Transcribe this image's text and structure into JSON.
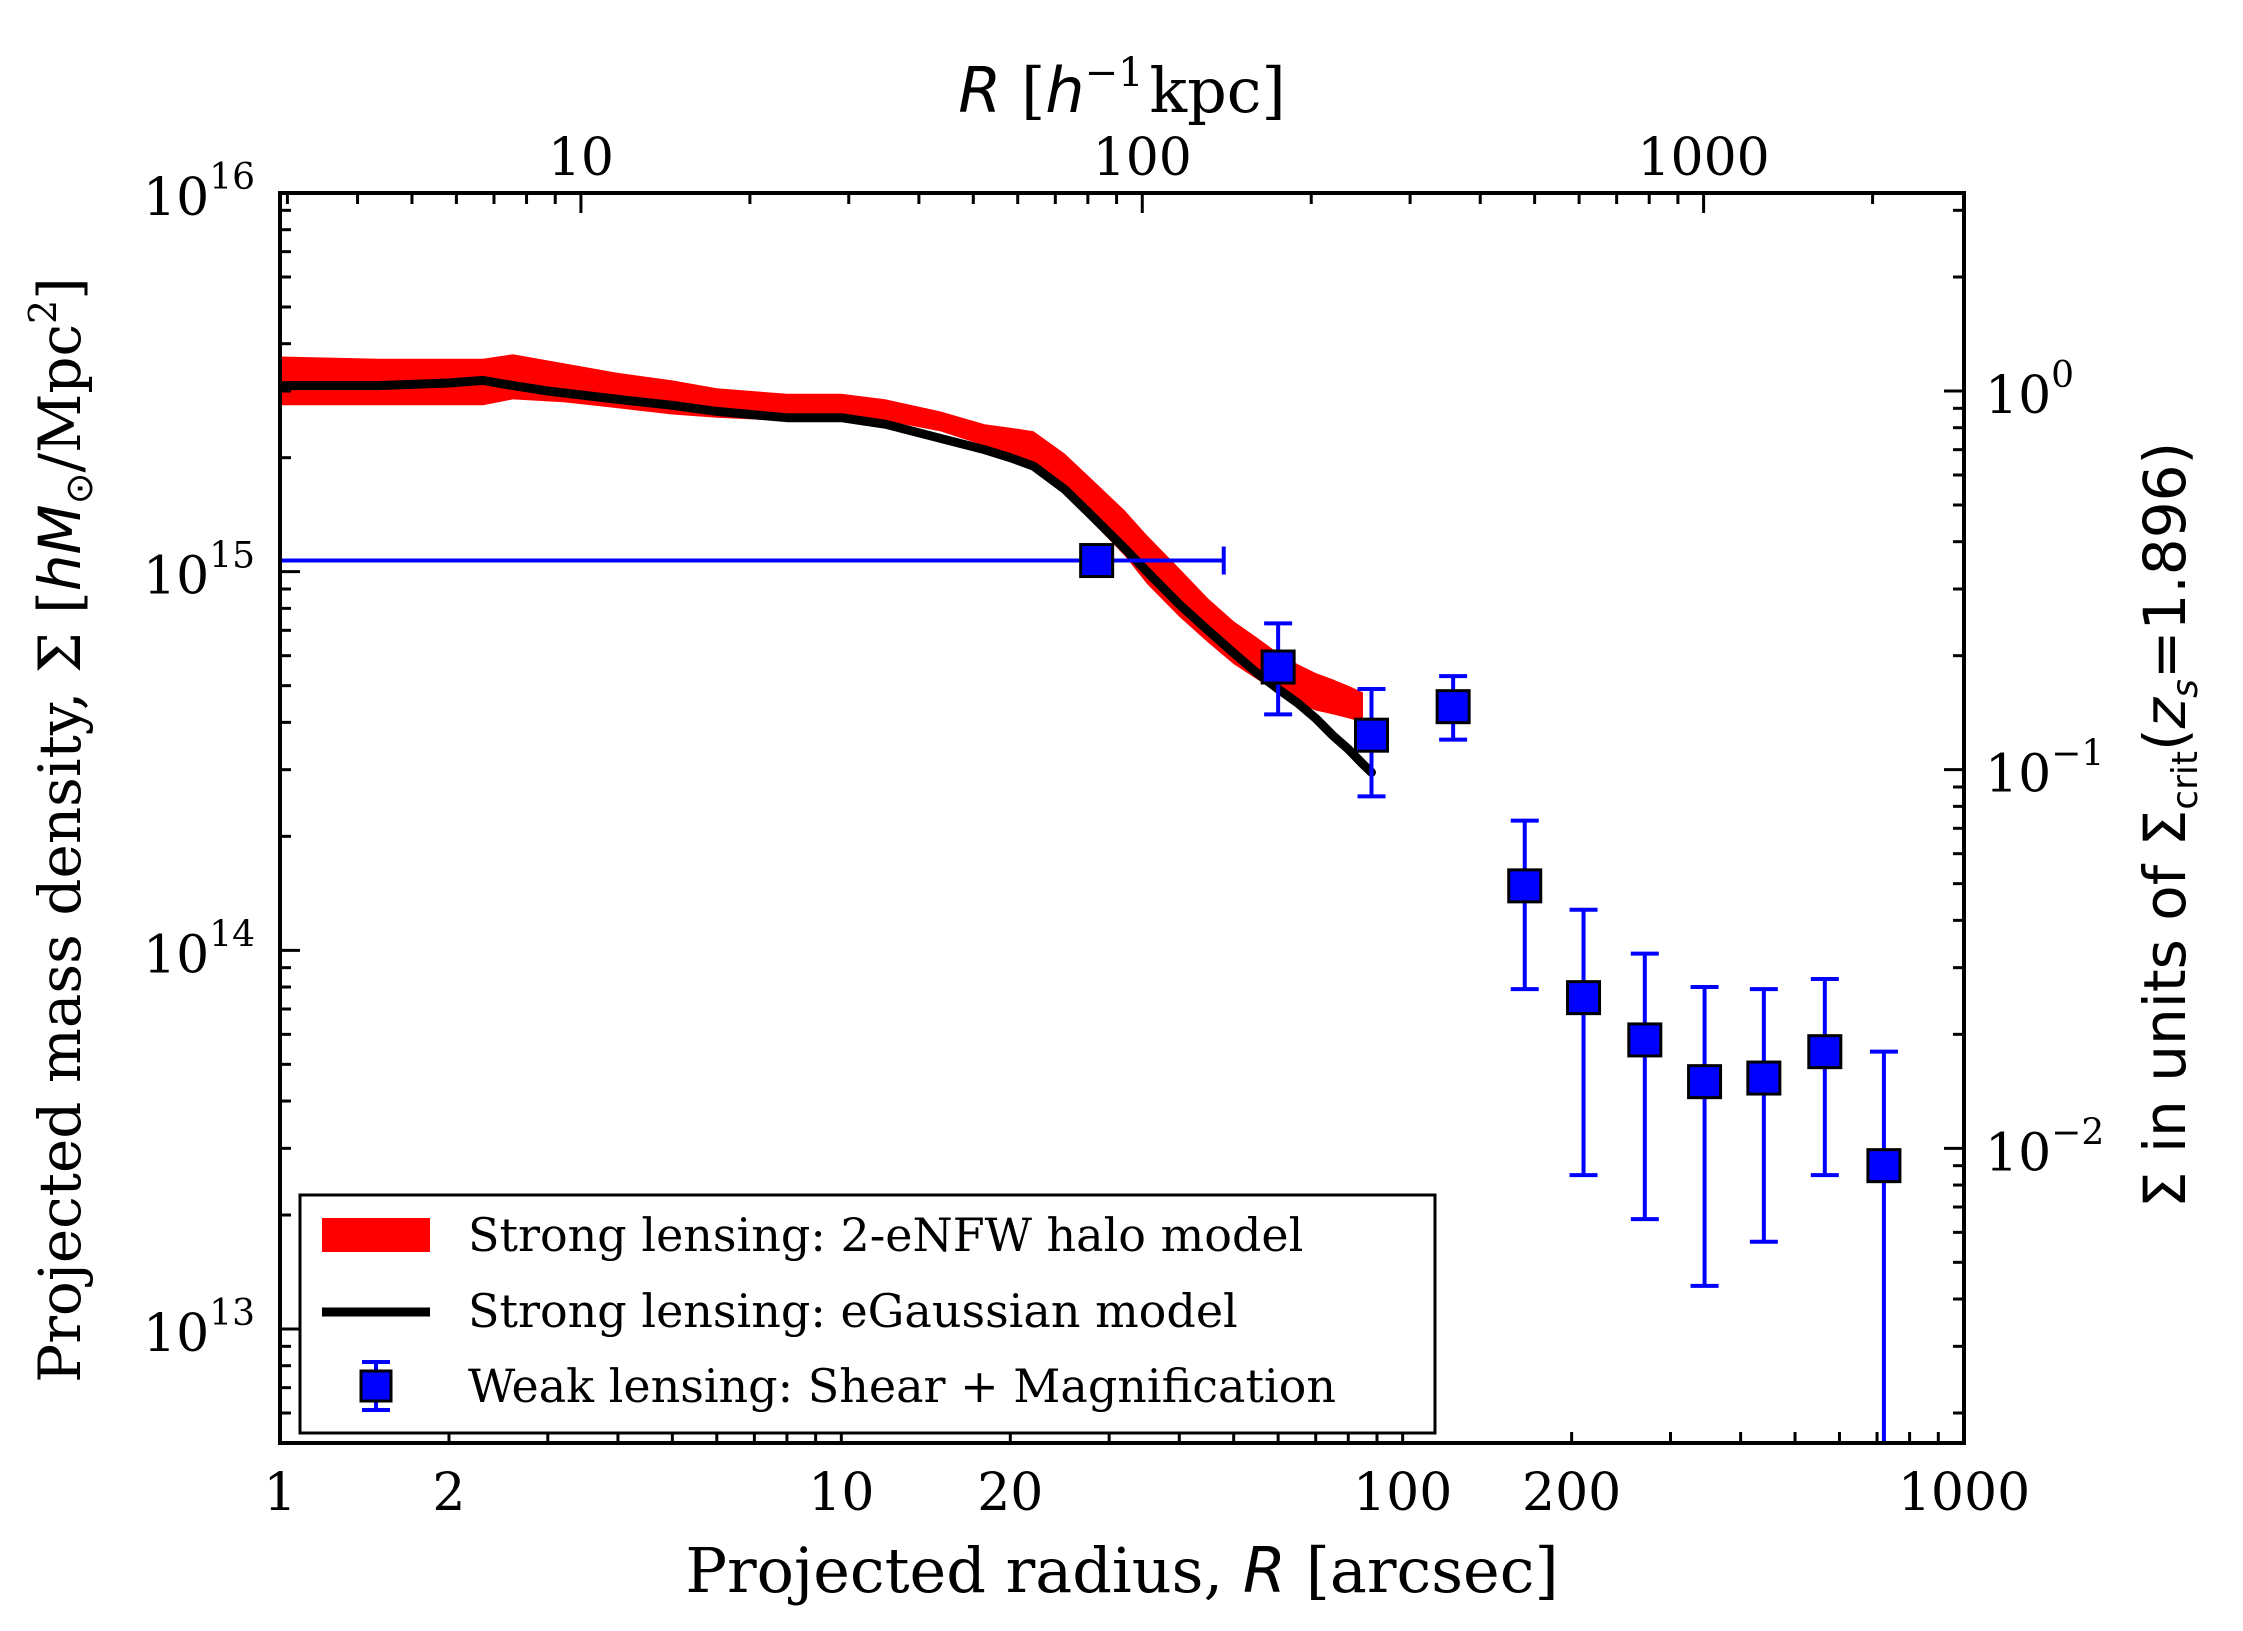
{
  "chart_data": {
    "type": "scatter",
    "scale": "log-log",
    "x_axis": {
      "label": "Projected radius, R [arcsec]",
      "label_text": "Projected radius, ",
      "label_var": "R",
      "label_unit": " [arcsec]",
      "range": [
        1,
        1000
      ],
      "tick_labels": [
        {
          "value": 1,
          "label": "1"
        },
        {
          "value": 2,
          "label": "2"
        },
        {
          "value": 10,
          "label": "10"
        },
        {
          "value": 20,
          "label": "20"
        },
        {
          "value": 100,
          "label": "100"
        },
        {
          "value": 200,
          "label": "200"
        },
        {
          "value": 1000,
          "label": "1000"
        }
      ]
    },
    "top_axis": {
      "label": "R [h^-1 kpc]",
      "label_var": "R",
      "label_unit_pre": " [",
      "label_h": "h",
      "label_sup": "−1",
      "label_unit_post": "kpc]",
      "kpc_per_arcsec": 2.91,
      "tick_labels": [
        {
          "value": 10,
          "label": "10"
        },
        {
          "value": 100,
          "label": "100"
        },
        {
          "value": 1000,
          "label": "1000"
        }
      ]
    },
    "y_axis": {
      "label": "Projected mass density, Σ [hM⊙/Mpc²]",
      "label_text": "Projected mass density, Σ [",
      "label_hm": "hM",
      "label_sun": "⊙",
      "label_mid": "/Mpc",
      "label_sq": "2",
      "label_end": "]",
      "range": [
        5000000000000.0,
        1e+16
      ],
      "tick_labels": [
        {
          "value": 10000000000000.0,
          "base": "10",
          "exp": "13"
        },
        {
          "value": 100000000000000.0,
          "base": "10",
          "exp": "14"
        },
        {
          "value": 1000000000000000.0,
          "base": "10",
          "exp": "15"
        },
        {
          "value": 1e+16,
          "base": "10",
          "exp": "16"
        }
      ]
    },
    "right_axis": {
      "label": "Σ in units of Σcrit(zs=1.896)",
      "label_text": "Σ in units of Σ",
      "label_sub": "crit",
      "label_open": "(",
      "label_z": "z",
      "label_zsub": "s",
      "label_eq": "=1.896)",
      "sigma_crit": 3000000000000000.0,
      "tick_labels": [
        {
          "value": 1,
          "base": "10",
          "exp": "0"
        },
        {
          "value": 0.1,
          "base": "10",
          "exp": "−1"
        },
        {
          "value": 0.01,
          "base": "10",
          "exp": "−2"
        }
      ]
    },
    "series": [
      {
        "name": "Strong lensing: 2-eNFW halo model",
        "kind": "band",
        "color": "#ff0000",
        "x": [
          1,
          1.5,
          2.3,
          2.6,
          3.2,
          4,
          5,
          6,
          8,
          10,
          12,
          15,
          18,
          20,
          22,
          25,
          28,
          32,
          35,
          40,
          45,
          50,
          55,
          60,
          65,
          70,
          75,
          80,
          85
        ],
        "upper": [
          3700000000000000.0,
          3650000000000000.0,
          3650000000000000.0,
          3750000000000000.0,
          3550000000000000.0,
          3350000000000000.0,
          3200000000000000.0,
          3050000000000000.0,
          2950000000000000.0,
          2950000000000000.0,
          2850000000000000.0,
          2650000000000000.0,
          2450000000000000.0,
          2400000000000000.0,
          2350000000000000.0,
          2050000000000000.0,
          1750000000000000.0,
          1450000000000000.0,
          1250000000000000.0,
          1020000000000000.0,
          850000000000000.0,
          740000000000000.0,
          670000000000000.0,
          610000000000000.0,
          570000000000000.0,
          540000000000000.0,
          520000000000000.0,
          500000000000000.0,
          480000000000000.0
        ],
        "lower": [
          2750000000000000.0,
          2750000000000000.0,
          2750000000000000.0,
          2850000000000000.0,
          2800000000000000.0,
          2700000000000000.0,
          2600000000000000.0,
          2550000000000000.0,
          2500000000000000.0,
          2550000000000000.0,
          2500000000000000.0,
          2350000000000000.0,
          2150000000000000.0,
          2050000000000000.0,
          1950000000000000.0,
          1650000000000000.0,
          1350000000000000.0,
          1100000000000000.0,
          930000000000000.0,
          760000000000000.0,
          650000000000000.0,
          570000000000000.0,
          520000000000000.0,
          480000000000000.0,
          450000000000000.0,
          430000000000000.0,
          420000000000000.0,
          410000000000000.0,
          400000000000000.0
        ]
      },
      {
        "name": "Strong lensing: eGaussian model",
        "kind": "line",
        "color": "#000000",
        "x": [
          1,
          1.5,
          2,
          2.3,
          2.6,
          3,
          4,
          5,
          6,
          8,
          10,
          12,
          15,
          18,
          20,
          22,
          25,
          28,
          32,
          36,
          40,
          45,
          50,
          55,
          60,
          65,
          70,
          75,
          80,
          85,
          88
        ],
        "y": [
          3100000000000000.0,
          3100000000000000.0,
          3150000000000000.0,
          3200000000000000.0,
          3100000000000000.0,
          3000000000000000.0,
          2850000000000000.0,
          2750000000000000.0,
          2650000000000000.0,
          2550000000000000.0,
          2550000000000000.0,
          2450000000000000.0,
          2250000000000000.0,
          2100000000000000.0,
          2000000000000000.0,
          1900000000000000.0,
          1650000000000000.0,
          1400000000000000.0,
          1150000000000000.0,
          960000000000000.0,
          820000000000000.0,
          700000000000000.0,
          610000000000000.0,
          540000000000000.0,
          490000000000000.0,
          450000000000000.0,
          410000000000000.0,
          370000000000000.0,
          340000000000000.0,
          310000000000000.0,
          295000000000000.0
        ]
      },
      {
        "name": "Weak lensing: Shear + Magnification",
        "kind": "errorbar",
        "color": "#0000ff",
        "points": [
          {
            "x": 28.5,
            "y": 1070000000000000.0,
            "y_lo": 1070000000000000.0,
            "y_hi": 1070000000000000.0,
            "x_lo": 1.0,
            "x_hi": 48
          },
          {
            "x": 60,
            "y": 560000000000000.0,
            "y_lo": 420000000000000.0,
            "y_hi": 730000000000000.0
          },
          {
            "x": 88,
            "y": 370000000000000.0,
            "y_lo": 255000000000000.0,
            "y_hi": 490000000000000.0
          },
          {
            "x": 123,
            "y": 440000000000000.0,
            "y_lo": 360000000000000.0,
            "y_hi": 530000000000000.0
          },
          {
            "x": 165,
            "y": 148000000000000.0,
            "y_lo": 79000000000000.0,
            "y_hi": 220000000000000.0
          },
          {
            "x": 210,
            "y": 75000000000000.0,
            "y_lo": 25500000000000.0,
            "y_hi": 128000000000000.0
          },
          {
            "x": 270,
            "y": 58000000000000.0,
            "y_lo": 19500000000000.0,
            "y_hi": 98000000000000.0
          },
          {
            "x": 345,
            "y": 45000000000000.0,
            "y_lo": 13000000000000.0,
            "y_hi": 80000000000000.0
          },
          {
            "x": 440,
            "y": 46000000000000.0,
            "y_lo": 17000000000000.0,
            "y_hi": 79000000000000.0
          },
          {
            "x": 565,
            "y": 54000000000000.0,
            "y_lo": 25500000000000.0,
            "y_hi": 84000000000000.0
          },
          {
            "x": 720,
            "y": 27000000000000.0,
            "y_lo": 5000000000000.0,
            "y_hi": 54000000000000.0
          }
        ]
      }
    ],
    "legend": {
      "placement": "lower-left",
      "entries": [
        "Strong lensing: 2-eNFW halo model",
        "Strong lensing: eGaussian model",
        "Weak lensing: Shear + Magnification"
      ]
    }
  }
}
